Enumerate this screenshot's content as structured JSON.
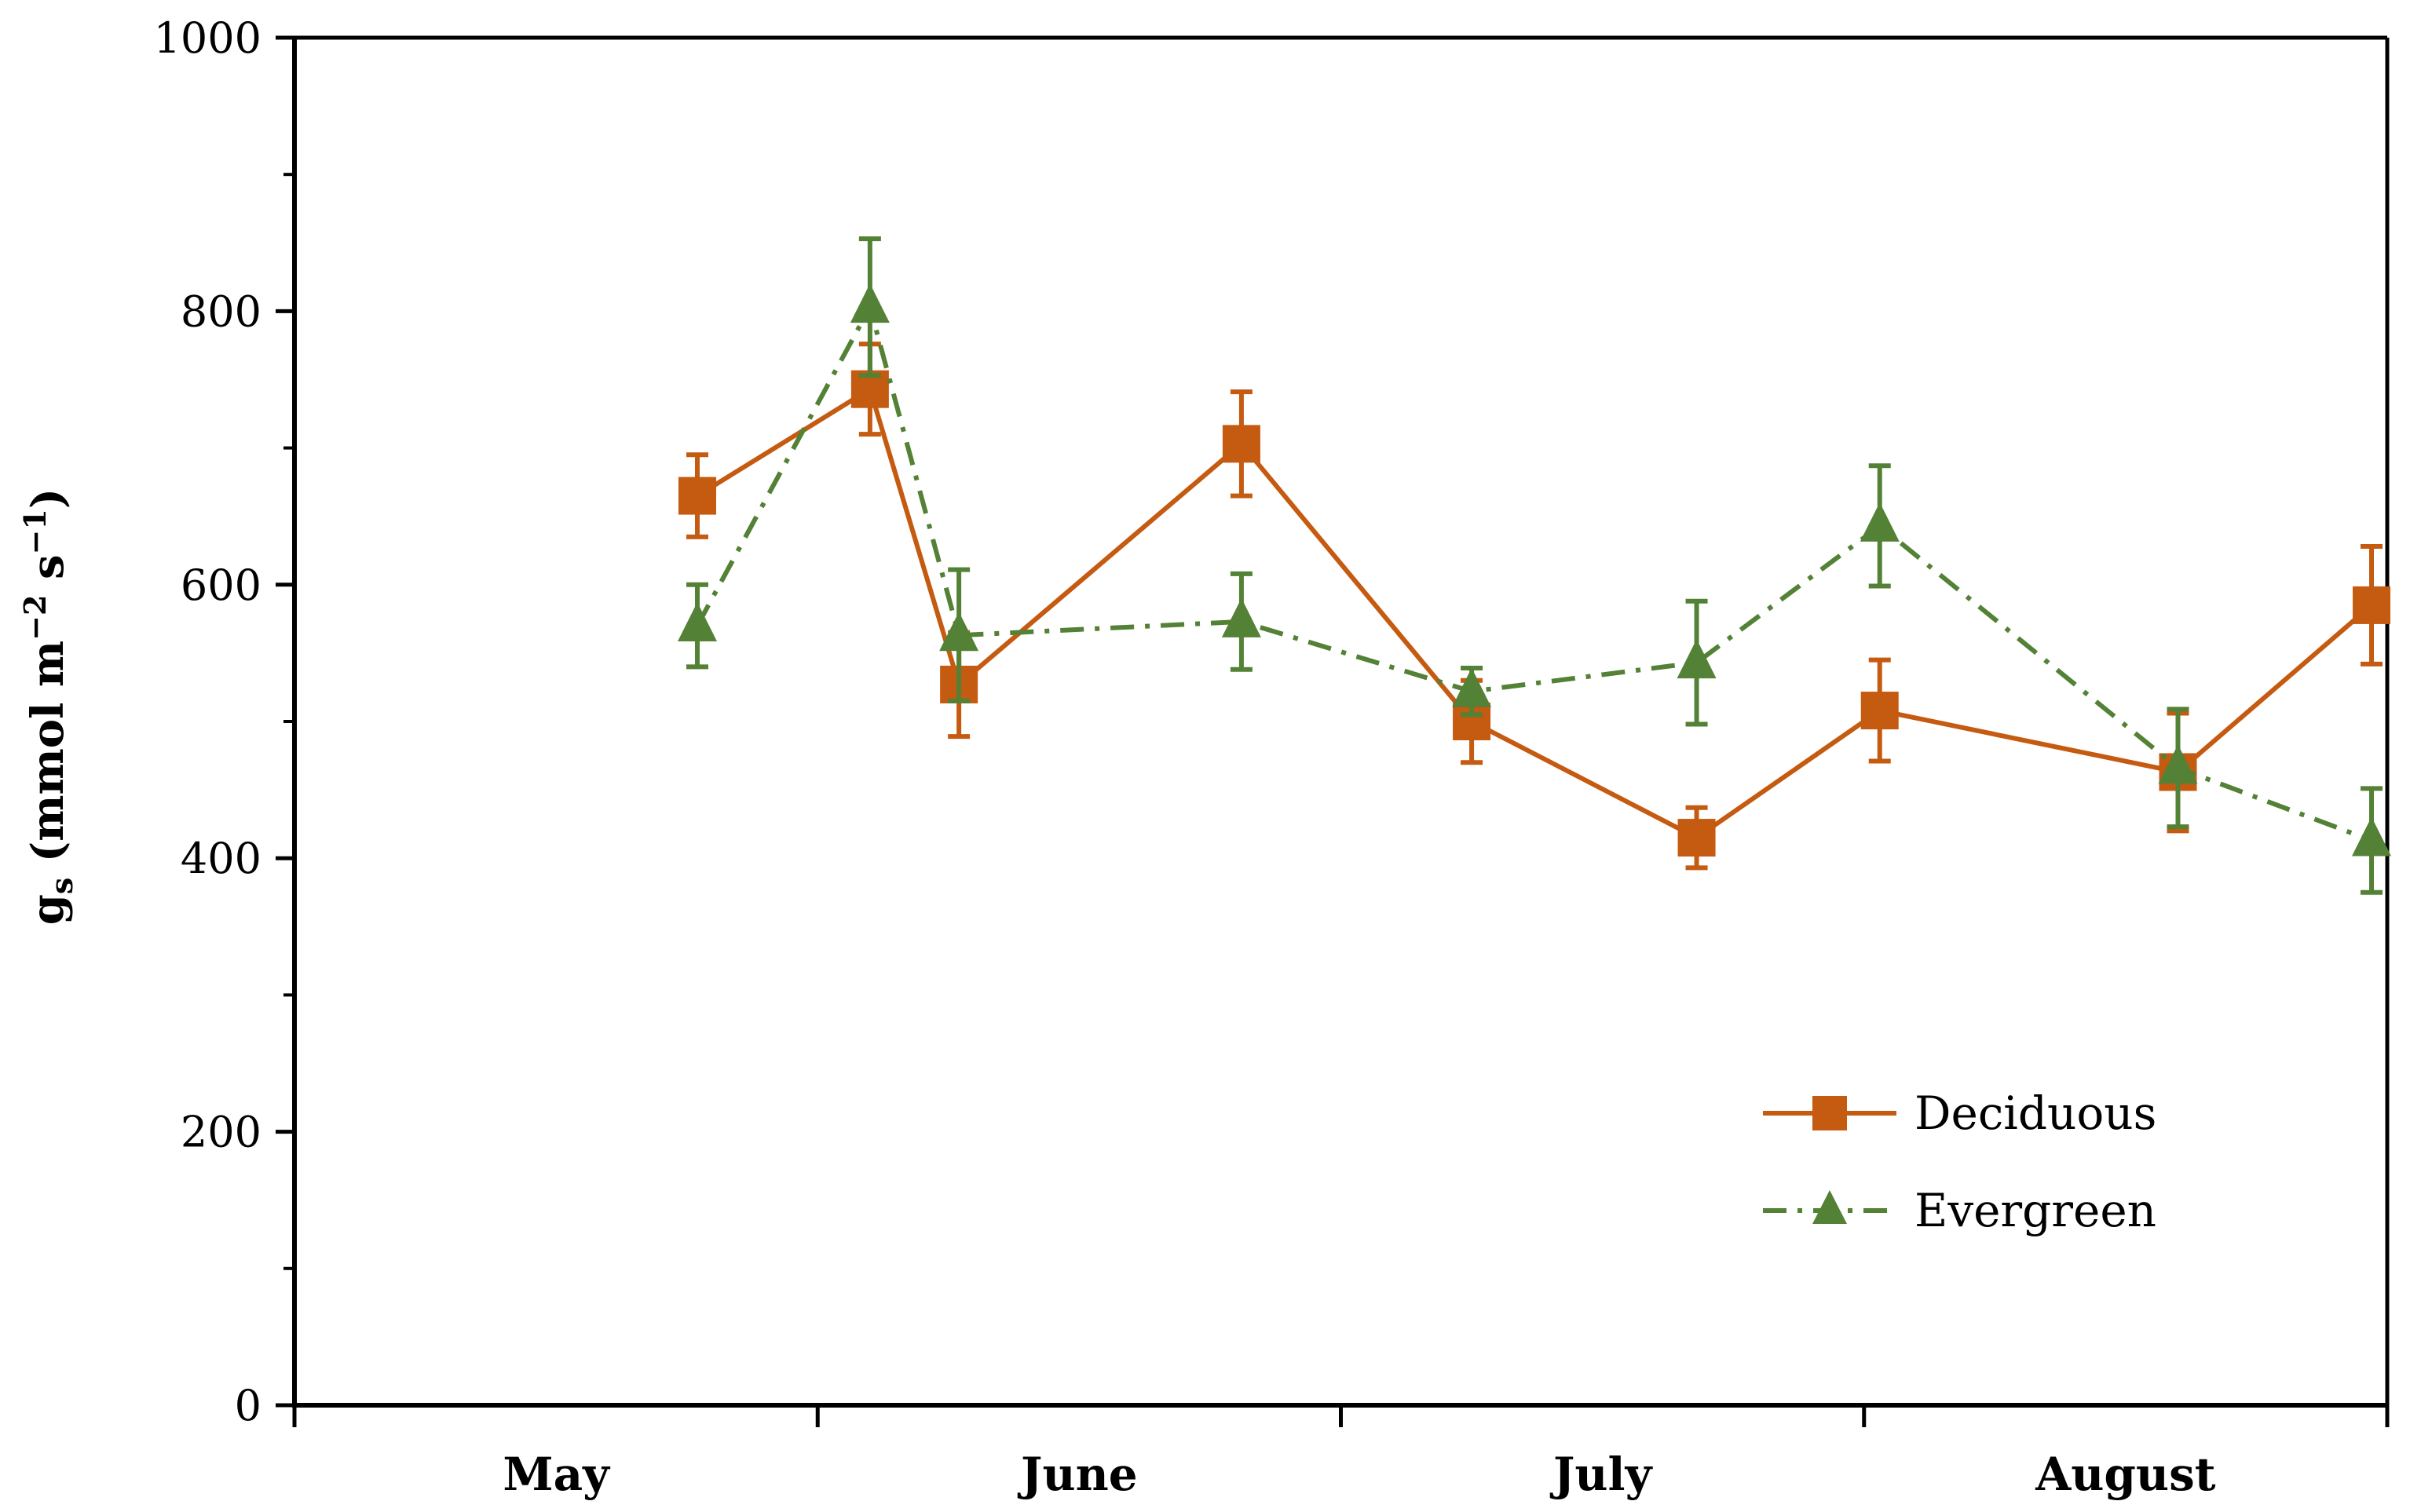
{
  "chart_data": {
    "type": "line",
    "title": "",
    "xlabel": "",
    "ylabel": {
      "main": "g",
      "sub": "s",
      "unit_prefix": " (mmol m",
      "sup1": "−2",
      "mid": " s",
      "sup2": "−1",
      "close": ")"
    },
    "ylim": [
      0,
      1000
    ],
    "yticks": [
      "0",
      "200",
      "400",
      "600",
      "800",
      "1000"
    ],
    "ytick_values": [
      0,
      200,
      400,
      600,
      800,
      1000
    ],
    "xlim": [
      0,
      4
    ],
    "month_labels": [
      "May",
      "June",
      "July",
      "August"
    ],
    "month_centers": [
      0.5,
      1.5,
      2.5,
      3.5
    ],
    "month_boundaries": [
      0,
      1,
      2,
      3,
      4
    ],
    "legend_position": "bottom-right",
    "series": [
      {
        "name": "Deciduous",
        "color": "#C55A11",
        "marker": "square",
        "line_style": "solid",
        "x": [
          0.77,
          1.1,
          1.27,
          1.81,
          2.25,
          2.68,
          3.03,
          3.6,
          3.97
        ],
        "values": [
          665,
          743,
          527,
          703,
          500,
          415,
          508,
          463,
          585
        ],
        "errors": [
          30,
          33,
          38,
          38,
          30,
          22,
          37,
          43,
          43
        ]
      },
      {
        "name": "Evergreen",
        "color": "#538135",
        "marker": "triangle",
        "line_style": "dash-dot",
        "x": [
          0.77,
          1.1,
          1.27,
          1.81,
          2.25,
          2.68,
          3.03,
          3.6,
          3.97
        ],
        "values": [
          570,
          803,
          563,
          573,
          522,
          543,
          643,
          466,
          413
        ],
        "errors": [
          30,
          50,
          48,
          35,
          17,
          45,
          44,
          43,
          38
        ]
      }
    ]
  }
}
